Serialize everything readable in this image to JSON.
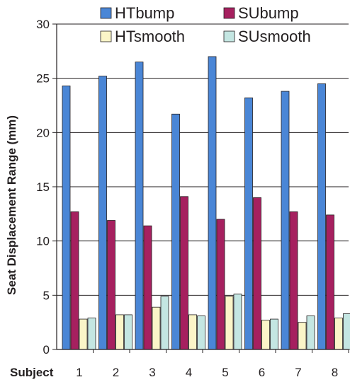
{
  "chart_data": {
    "type": "bar",
    "categories": [
      "1",
      "2",
      "3",
      "4",
      "5",
      "6",
      "7",
      "8"
    ],
    "series": [
      {
        "name": "HTbump",
        "color": "#4a86d6",
        "values": [
          24.3,
          25.2,
          26.5,
          21.7,
          27.0,
          23.2,
          23.8,
          24.5
        ]
      },
      {
        "name": "SUbump",
        "color": "#a6205f",
        "values": [
          12.7,
          11.9,
          11.4,
          14.1,
          12.0,
          14.0,
          12.7,
          12.4
        ]
      },
      {
        "name": "HTsmooth",
        "color": "#fbf5c8",
        "values": [
          2.8,
          3.2,
          3.9,
          3.2,
          4.9,
          2.7,
          2.5,
          2.9
        ]
      },
      {
        "name": "SUsmooth",
        "color": "#c4e6e2",
        "values": [
          2.9,
          3.2,
          4.9,
          3.1,
          5.1,
          2.8,
          3.1,
          3.3
        ]
      }
    ],
    "title": "",
    "xlabel": "Subject",
    "ylabel": "Seat Displacement Range (mm)",
    "ylim": [
      0,
      30
    ],
    "yticks": [
      0,
      5,
      10,
      15,
      20,
      25,
      30
    ],
    "grid": true,
    "legend_position": "top"
  }
}
